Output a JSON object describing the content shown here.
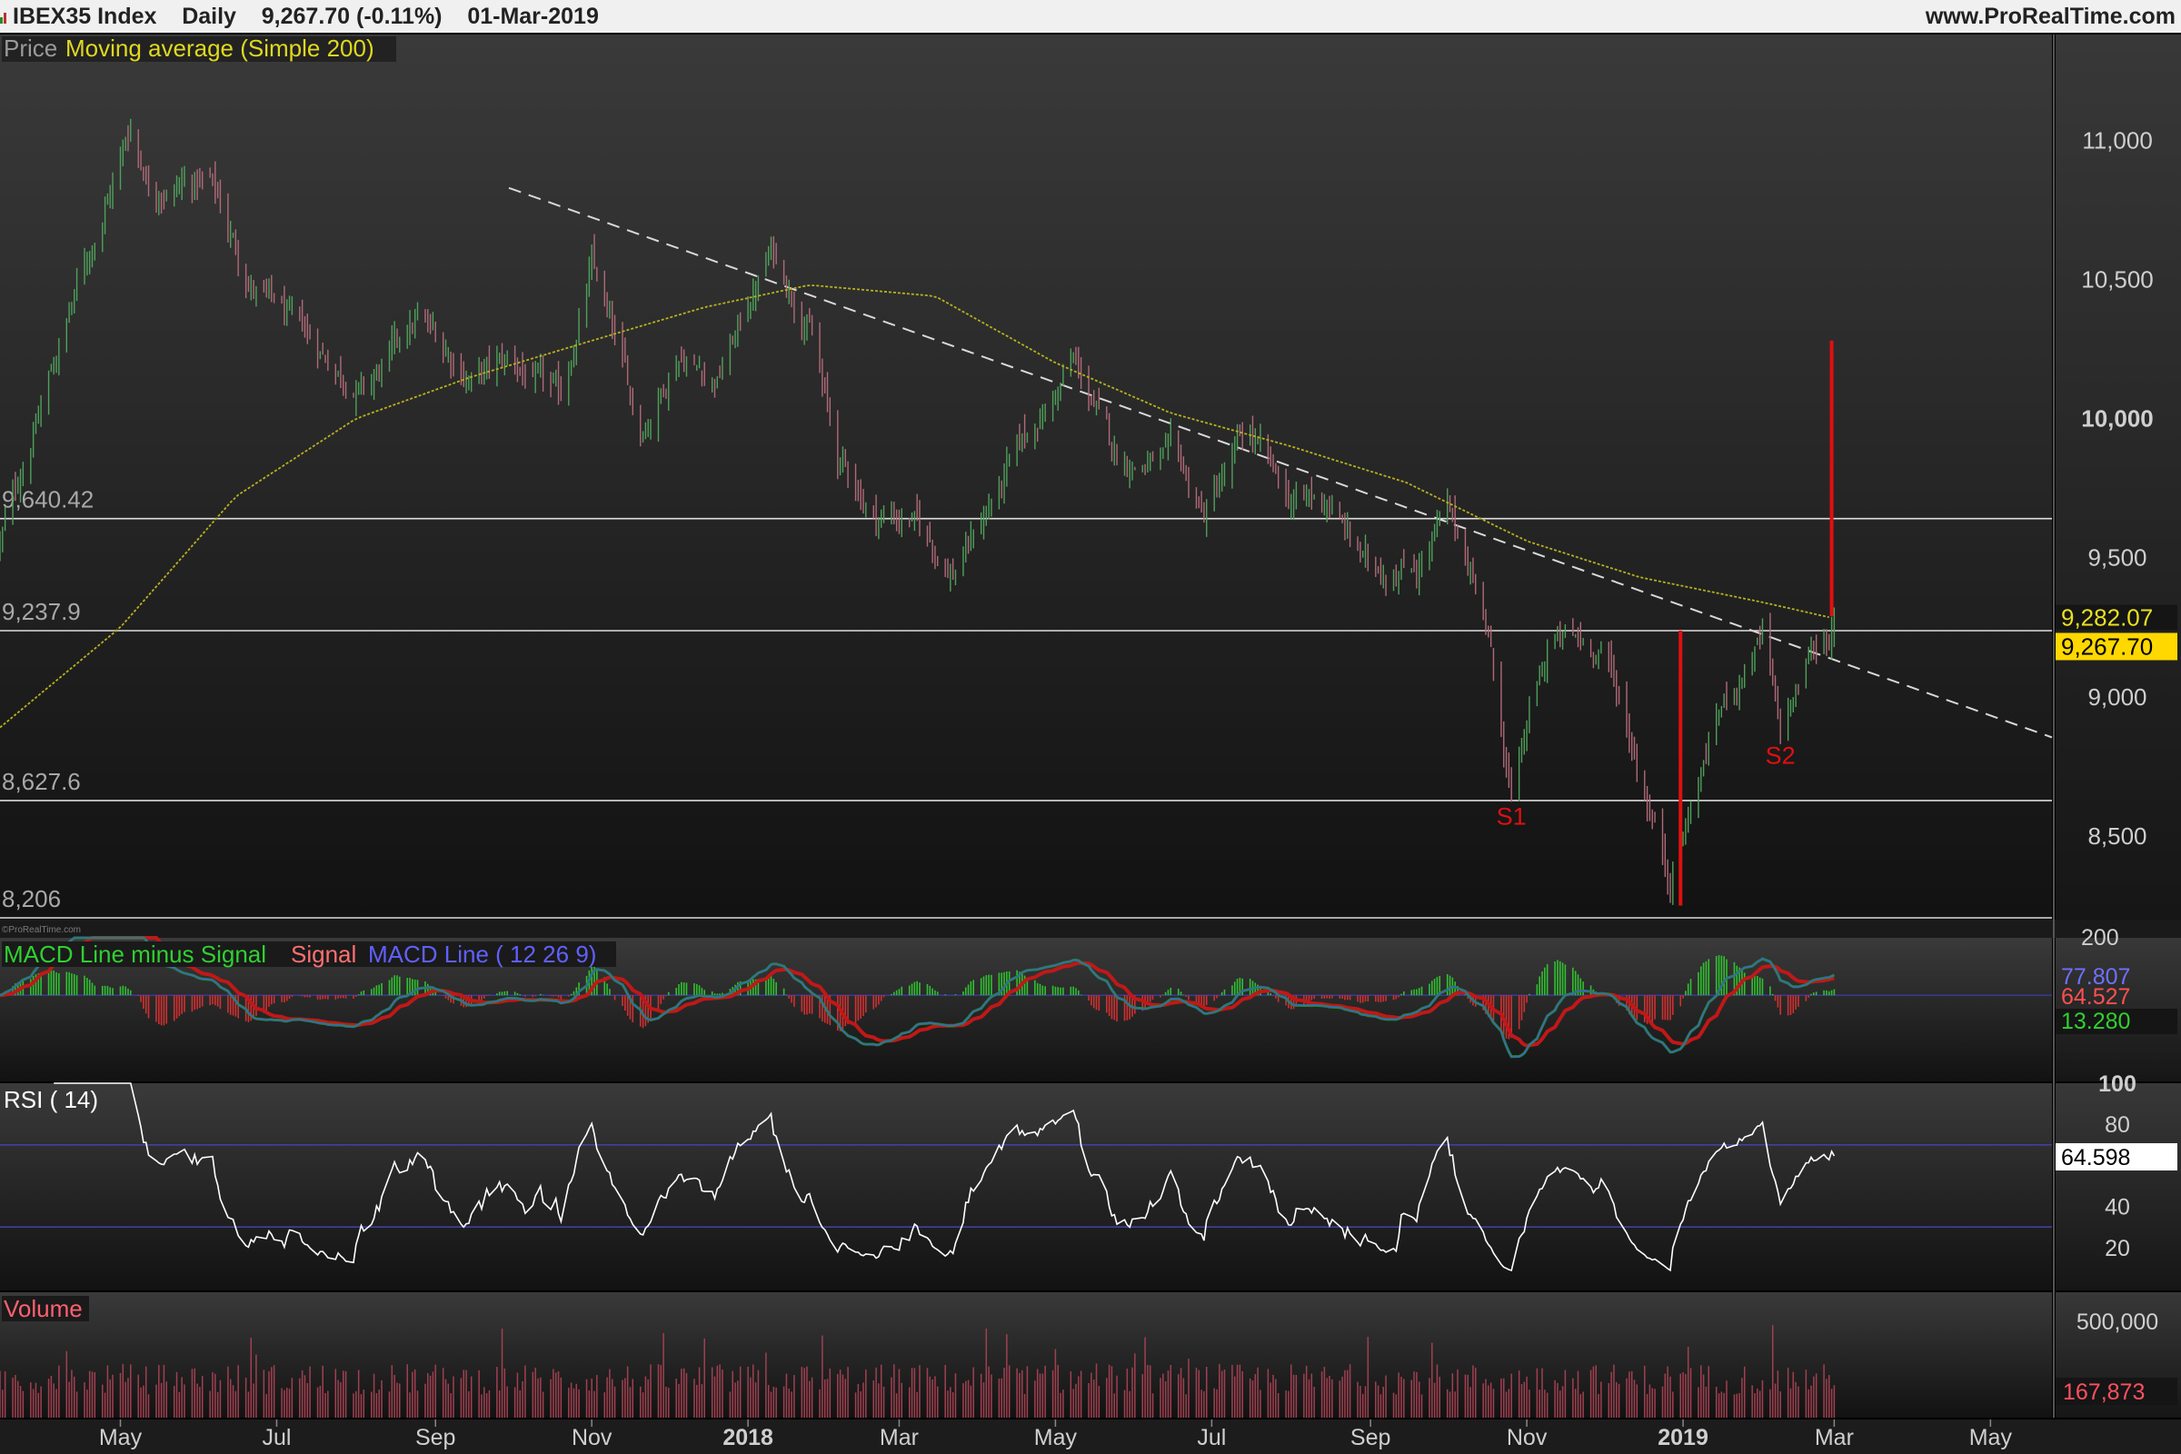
{
  "header": {
    "symbol": "IBEX35 Index",
    "period": "Daily",
    "last": "9,267.70 (-0.11%)",
    "date": "01-Mar-2019",
    "site": "www.ProRealTime.com"
  },
  "colors": {
    "up": "#4fa05a",
    "down": "#b06a78",
    "ma": "#b8b020",
    "trend": "#d8d8d8",
    "hline": "#ffffff",
    "arrow": "#e01010",
    "macd_line": "#5050ff",
    "signal": "#ff4040",
    "hist_pos": "#30c030",
    "hist_neg": "#d03030",
    "rsi": "#ffffff",
    "rsi_band": "#4040a0",
    "volume": "#a04050"
  },
  "price_panel": {
    "legend_price": "Price",
    "legend_ma": "Moving average (Simple 200)",
    "watermark": "©ProRealTime.com",
    "ylim": [
      8206,
      11380
    ],
    "yticks": [
      {
        "v": 11000,
        "t": "11,000"
      },
      {
        "v": 10500,
        "t": "10,500"
      },
      {
        "v": 10000,
        "t": "10,000"
      },
      {
        "v": 9500,
        "t": "9,500"
      },
      {
        "v": 9000,
        "t": "9,000"
      },
      {
        "v": 8500,
        "t": "8,500"
      }
    ],
    "hlines": [
      {
        "v": 9640.42,
        "t": "9,640.42"
      },
      {
        "v": 9237.9,
        "t": "9,237.9"
      },
      {
        "v": 8627.6,
        "t": "8,627.6"
      },
      {
        "v": 8206,
        "t": "8,206"
      }
    ],
    "ma_value": "9,282.07",
    "last_value": "9,267.70",
    "labels": [
      {
        "t": "S1",
        "x": "2018-10-26",
        "v": 8540
      },
      {
        "t": "S2",
        "x": "2019-02-08",
        "v": 8760
      }
    ]
  },
  "macd_panel": {
    "legend_hist": "MACD Line minus Signal",
    "legend_signal": "Signal",
    "legend_macd": "MACD Line ( 12 26 9)",
    "ylim": [
      -300,
      200
    ],
    "yticks": [
      {
        "v": 200,
        "t": "200"
      }
    ],
    "values": {
      "macd": "77.807",
      "signal": "64.527",
      "hist": "13.280"
    }
  },
  "rsi_panel": {
    "legend": "RSI ( 14)",
    "ylim": [
      0,
      100
    ],
    "yticks": [
      {
        "v": 100,
        "t": "100"
      },
      {
        "v": 80,
        "t": "80"
      },
      {
        "v": 40,
        "t": "40"
      },
      {
        "v": 20,
        "t": "20"
      }
    ],
    "bands": [
      70,
      30
    ],
    "value": "64.598"
  },
  "volume_panel": {
    "legend": "Volume",
    "yticks": [
      {
        "v": 500000,
        "t": "500,000"
      }
    ],
    "value": "167,873"
  },
  "x_axis": {
    "range": [
      "2017-03-15",
      "2019-05-25"
    ],
    "labels": [
      {
        "d": "2017-05-01",
        "t": "May",
        "bold": false
      },
      {
        "d": "2017-07-01",
        "t": "Jul",
        "bold": false
      },
      {
        "d": "2017-09-01",
        "t": "Sep",
        "bold": false
      },
      {
        "d": "2017-11-01",
        "t": "Nov",
        "bold": false
      },
      {
        "d": "2018-01-01",
        "t": "2018",
        "bold": true
      },
      {
        "d": "2018-03-01",
        "t": "Mar",
        "bold": false
      },
      {
        "d": "2018-05-01",
        "t": "May",
        "bold": false
      },
      {
        "d": "2018-07-01",
        "t": "Jul",
        "bold": false
      },
      {
        "d": "2018-09-01",
        "t": "Sep",
        "bold": false
      },
      {
        "d": "2018-11-01",
        "t": "Nov",
        "bold": false
      },
      {
        "d": "2019-01-01",
        "t": "2019",
        "bold": true
      },
      {
        "d": "2019-03-01",
        "t": "Mar",
        "bold": false
      },
      {
        "d": "2019-05-01",
        "t": "May",
        "bold": false
      }
    ]
  },
  "chart_data": {
    "type": "line",
    "title": "IBEX35 Index",
    "series": [
      {
        "name": "Price",
        "x": [
          "2017-03-15",
          "2017-04-10",
          "2017-05-05",
          "2017-05-12",
          "2017-06-05",
          "2017-06-20",
          "2017-07-10",
          "2017-08-05",
          "2017-08-25",
          "2017-09-15",
          "2017-10-01",
          "2017-10-20",
          "2017-11-01",
          "2017-11-20",
          "2017-12-05",
          "2017-12-20",
          "2018-01-10",
          "2018-01-25",
          "2018-02-05",
          "2018-02-20",
          "2018-03-05",
          "2018-03-22",
          "2018-04-15",
          "2018-05-08",
          "2018-05-25",
          "2018-06-15",
          "2018-06-28",
          "2018-07-15",
          "2018-07-30",
          "2018-08-15",
          "2018-09-01",
          "2018-09-20",
          "2018-10-01",
          "2018-10-15",
          "2018-10-26",
          "2018-11-10",
          "2018-12-01",
          "2018-12-27",
          "2019-01-15",
          "2019-02-01",
          "2019-02-08",
          "2019-02-20",
          "2019-03-01"
        ],
        "values": [
          9550,
          10350,
          11050,
          10850,
          10850,
          10500,
          10300,
          10100,
          10350,
          10150,
          10200,
          10050,
          10550,
          9950,
          10250,
          10150,
          10600,
          10350,
          9850,
          9650,
          9650,
          9450,
          9850,
          10200,
          9850,
          9850,
          9650,
          9950,
          9700,
          9700,
          9450,
          9500,
          9650,
          9350,
          8640,
          9200,
          9180,
          8360,
          8950,
          9220,
          8850,
          9150,
          9267.7
        ]
      },
      {
        "name": "Moving average (Simple 200)",
        "x": [
          "2017-03-15",
          "2017-05-01",
          "2017-06-15",
          "2017-08-01",
          "2017-09-15",
          "2017-11-01",
          "2017-12-15",
          "2018-01-25",
          "2018-03-15",
          "2018-05-01",
          "2018-06-15",
          "2018-08-01",
          "2018-09-15",
          "2018-11-01",
          "2018-12-15",
          "2019-02-01",
          "2019-03-01"
        ],
        "values": [
          8890,
          9250,
          9720,
          10000,
          10150,
          10280,
          10400,
          10480,
          10440,
          10200,
          10020,
          9900,
          9770,
          9560,
          9430,
          9340,
          9282.07
        ]
      },
      {
        "name": "MACD Line ( 12 26 9)",
        "values": [
          77.807
        ]
      },
      {
        "name": "Signal",
        "values": [
          64.527
        ]
      },
      {
        "name": "MACD Line minus Signal",
        "values": [
          13.28
        ]
      },
      {
        "name": "RSI ( 14)",
        "values": [
          64.598
        ]
      },
      {
        "name": "Volume",
        "values": [
          167873
        ]
      }
    ]
  }
}
